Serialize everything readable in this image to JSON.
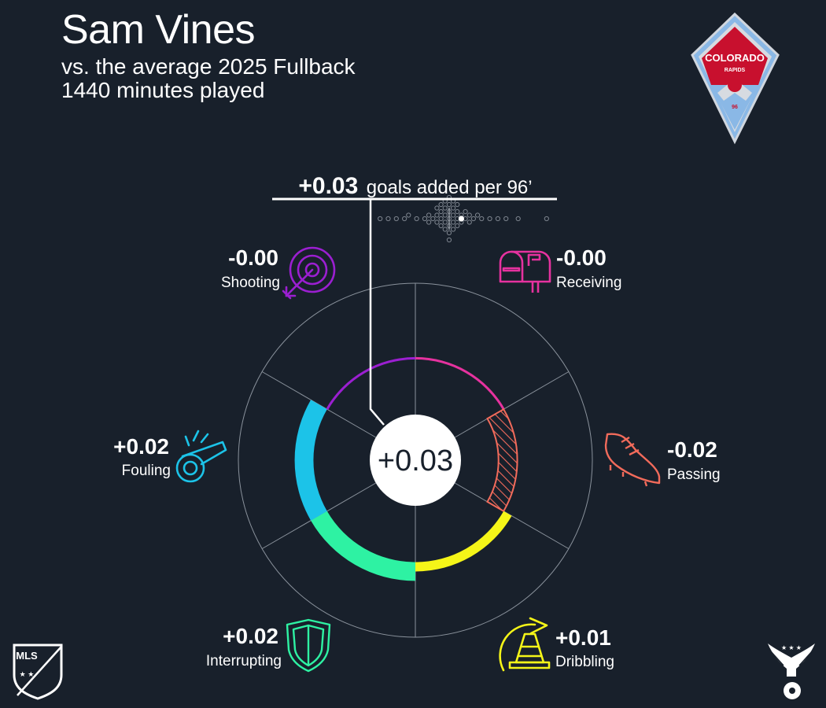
{
  "header": {
    "player_name": "Sam Vines",
    "comparison": "vs. the average 2025 Fullback",
    "minutes": "1440 minutes played"
  },
  "total": {
    "value_label": "+0.03",
    "unit_label": "goals added per 96’"
  },
  "logos": {
    "club_text_top": "COLORADO",
    "club_text_mid": "RAPIDS",
    "club_text_num": "96",
    "league_text": "MLS"
  },
  "colors": {
    "background": "#18202b",
    "shooting": "#9b1fd1",
    "receiving": "#e6329f",
    "passing": "#f26b5b",
    "dribbling": "#f5f518",
    "interrupting": "#2ef2a3",
    "fouling": "#1cc3e8",
    "club_red": "#c8102e",
    "club_blue": "#8ab8e6"
  },
  "chart_data": {
    "type": "radial-bar",
    "center_value": 0.03,
    "center_label": "+0.03",
    "categories": [
      {
        "name": "Receiving",
        "value": -0.0,
        "label": "-0.00",
        "icon": "mailbox-icon",
        "color": "#e6329f"
      },
      {
        "name": "Passing",
        "value": -0.02,
        "label": "-0.02",
        "icon": "cleat-icon",
        "color": "#f26b5b"
      },
      {
        "name": "Dribbling",
        "value": 0.01,
        "label": "+0.01",
        "icon": "cone-icon",
        "color": "#f5f518"
      },
      {
        "name": "Interrupting",
        "value": 0.02,
        "label": "+0.02",
        "icon": "shield-icon",
        "color": "#2ef2a3"
      },
      {
        "name": "Fouling",
        "value": 0.02,
        "label": "+0.02",
        "icon": "whistle-icon",
        "color": "#1cc3e8"
      },
      {
        "name": "Shooting",
        "value": -0.0,
        "label": "-0.00",
        "icon": "target-icon",
        "color": "#9b1fd1"
      }
    ],
    "radial_range": [
      -0.06,
      0.08
    ],
    "distribution": {
      "player_value": 0.03,
      "league_values": [
        -0.17,
        -0.15,
        -0.13,
        -0.11,
        -0.1,
        -0.08,
        -0.06,
        -0.05,
        -0.05,
        -0.04,
        -0.03,
        -0.03,
        -0.03,
        -0.02,
        -0.02,
        -0.02,
        -0.02,
        -0.01,
        -0.01,
        -0.01,
        -0.01,
        -0.01,
        0.0,
        0.0,
        0.0,
        0.0,
        0.0,
        0.0,
        0.0,
        0.01,
        0.01,
        0.01,
        0.01,
        0.01,
        0.02,
        0.02,
        0.02,
        0.02,
        0.03,
        0.03,
        0.04,
        0.04,
        0.05,
        0.05,
        0.06,
        0.07,
        0.08,
        0.1,
        0.12,
        0.14,
        0.17,
        0.24
      ]
    }
  }
}
